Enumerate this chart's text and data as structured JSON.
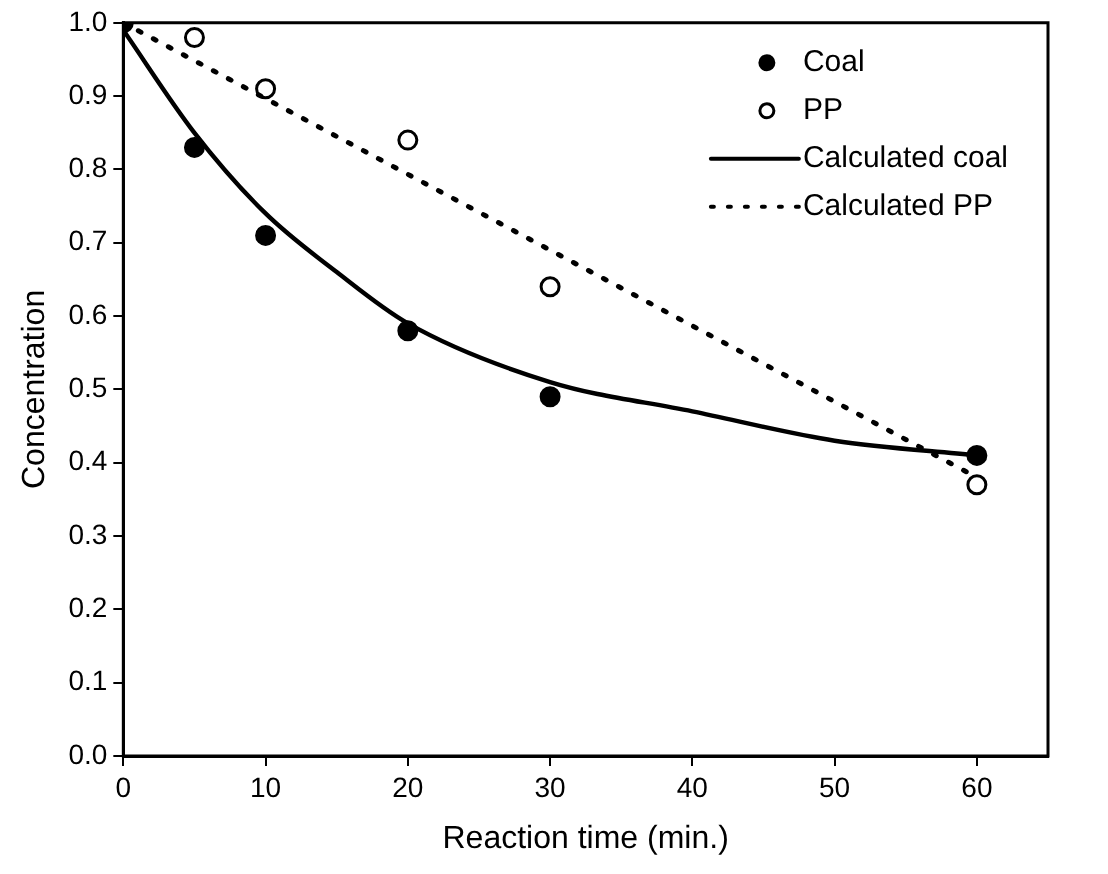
{
  "chart_data": {
    "type": "scatter",
    "xlabel": "Reaction time (min.)",
    "ylabel": "Concentration",
    "xlim": [
      0,
      65
    ],
    "xticks": [
      0,
      10,
      20,
      30,
      40,
      50,
      60
    ],
    "ylim": [
      0,
      1.0
    ],
    "yticks": [
      {
        "value": 0,
        "label": "0.0"
      },
      {
        "value": 0.1,
        "label": "0.1"
      },
      {
        "value": 0.2,
        "label": "0.2"
      },
      {
        "value": 0.3,
        "label": "0.3"
      },
      {
        "value": 0.4,
        "label": "0.4"
      },
      {
        "value": 0.5,
        "label": "0.5"
      },
      {
        "value": 0.6,
        "label": "0.6"
      },
      {
        "value": 0.7,
        "label": "0.7"
      },
      {
        "value": 0.8,
        "label": "0.8"
      },
      {
        "value": 0.9,
        "label": "0.9"
      },
      {
        "value": 1.0,
        "label": "1.0"
      }
    ],
    "grid": false,
    "legend": "top right",
    "series": [
      {
        "name": "Coal",
        "color": "#000000",
        "marker": "circle",
        "x": [
          0,
          5,
          10,
          20,
          30,
          60
        ],
        "values": [
          1.0,
          0.83,
          0.71,
          0.58,
          0.49,
          0.41
        ]
      },
      {
        "name": "PP",
        "color": "#000000",
        "marker": "circle",
        "x": [
          5,
          10,
          20,
          30,
          60
        ],
        "values": [
          0.98,
          0.91,
          0.84,
          0.64,
          0.37
        ]
      },
      {
        "name": "Calculated coal",
        "type": "line",
        "color": "#000000",
        "line_style": "solid",
        "x": [
          0,
          5,
          10,
          15,
          20,
          30,
          40,
          50,
          60
        ],
        "values": [
          0.99,
          0.85,
          0.74,
          0.66,
          0.59,
          0.51,
          0.47,
          0.43,
          0.41
        ]
      },
      {
        "name": "Calculated PP",
        "type": "line",
        "color": "#000000",
        "line_style": "dotted",
        "x": [
          0,
          60
        ],
        "values": [
          1.0,
          0.38
        ]
      }
    ]
  }
}
